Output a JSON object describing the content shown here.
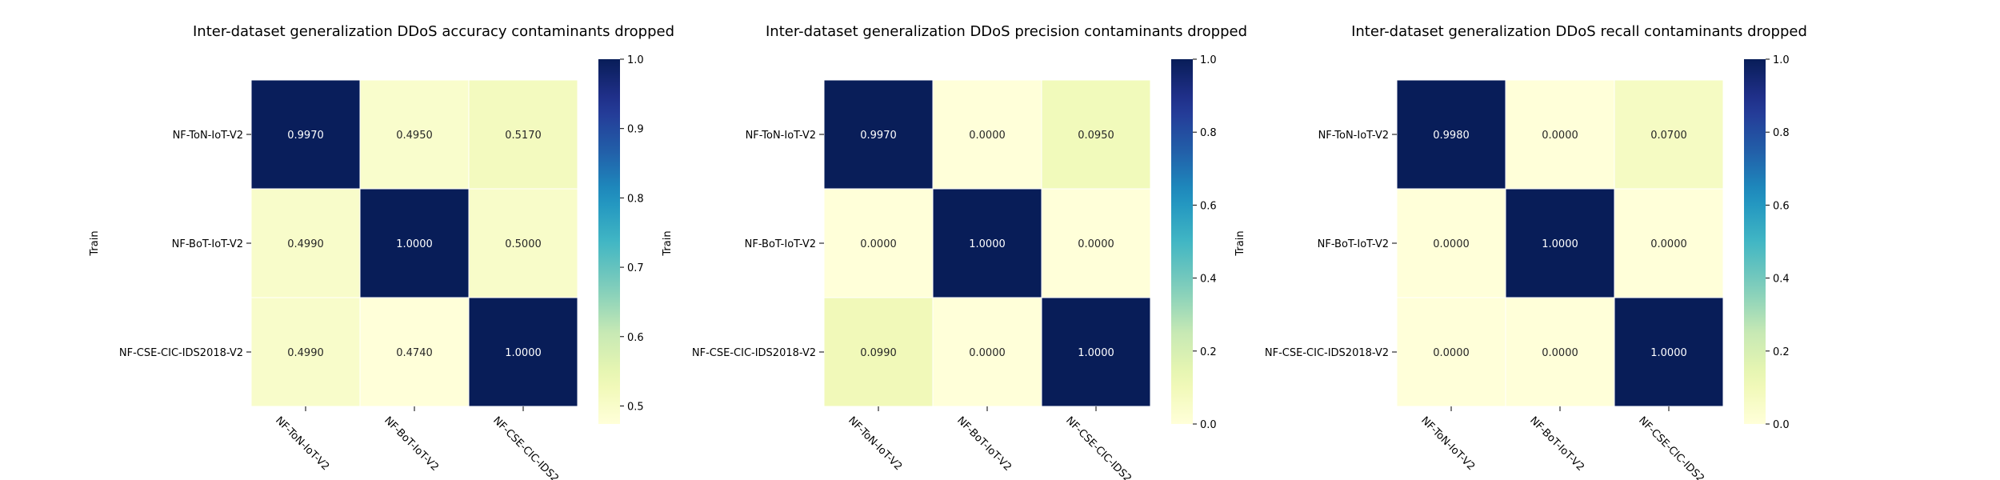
{
  "chart_data": [
    {
      "type": "heatmap",
      "title": "Inter-dataset generalization DDoS accuracy contaminants dropped",
      "ylabel": "Train",
      "xlabel": "",
      "rows": [
        "NF-ToN-IoT-V2",
        "NF-BoT-IoT-V2",
        "NF-CSE-CIC-IDS2018-V2"
      ],
      "columns": [
        "NF-ToN-IoT-V2",
        "NF-BoT-IoT-V2",
        "NF-CSE-CIC-IDS2"
      ],
      "values": [
        [
          0.997,
          0.495,
          0.517
        ],
        [
          0.499,
          1.0,
          0.5
        ],
        [
          0.499,
          0.474,
          1.0
        ]
      ],
      "labels": [
        [
          "0.9970",
          "0.4950",
          "0.5170"
        ],
        [
          "0.4990",
          "1.0000",
          "0.5000"
        ],
        [
          "0.4990",
          "0.4740",
          "1.0000"
        ]
      ],
      "colorbar": {
        "min": 0.474,
        "max": 1.0,
        "ticks": [
          0.5,
          0.6,
          0.7,
          0.8,
          0.9,
          1.0
        ],
        "tick_labels": [
          "0.5",
          "0.6",
          "0.7",
          "0.8",
          "0.9",
          "1.0"
        ]
      },
      "colormap": "YlGnBu"
    },
    {
      "type": "heatmap",
      "title": "Inter-dataset generalization DDoS precision contaminants dropped",
      "ylabel": "Train",
      "xlabel": "",
      "rows": [
        "NF-ToN-IoT-V2",
        "NF-BoT-IoT-V2",
        "NF-CSE-CIC-IDS2018-V2"
      ],
      "columns": [
        "NF-ToN-IoT-V2",
        "NF-BoT-IoT-V2",
        "NF-CSE-CIC-IDS2"
      ],
      "values": [
        [
          0.997,
          0.0,
          0.095
        ],
        [
          0.0,
          1.0,
          0.0
        ],
        [
          0.099,
          0.0,
          1.0
        ]
      ],
      "labels": [
        [
          "0.9970",
          "0.0000",
          "0.0950"
        ],
        [
          "0.0000",
          "1.0000",
          "0.0000"
        ],
        [
          "0.0990",
          "0.0000",
          "1.0000"
        ]
      ],
      "colorbar": {
        "min": 0.0,
        "max": 1.0,
        "ticks": [
          0.0,
          0.2,
          0.4,
          0.6,
          0.8,
          1.0
        ],
        "tick_labels": [
          "0.0",
          "0.2",
          "0.4",
          "0.6",
          "0.8",
          "1.0"
        ]
      },
      "colormap": "YlGnBu"
    },
    {
      "type": "heatmap",
      "title": "Inter-dataset generalization DDoS recall contaminants dropped",
      "ylabel": "Train",
      "xlabel": "",
      "rows": [
        "NF-ToN-IoT-V2",
        "NF-BoT-IoT-V2",
        "NF-CSE-CIC-IDS2018-V2"
      ],
      "columns": [
        "NF-ToN-IoT-V2",
        "NF-BoT-IoT-V2",
        "NF-CSE-CIC-IDS2"
      ],
      "values": [
        [
          0.998,
          0.0,
          0.07
        ],
        [
          0.0,
          1.0,
          0.0
        ],
        [
          0.0,
          0.0,
          1.0
        ]
      ],
      "labels": [
        [
          "0.9980",
          "0.0000",
          "0.0700"
        ],
        [
          "0.0000",
          "1.0000",
          "0.0000"
        ],
        [
          "0.0000",
          "0.0000",
          "1.0000"
        ]
      ],
      "colorbar": {
        "min": 0.0,
        "max": 1.0,
        "ticks": [
          0.0,
          0.2,
          0.4,
          0.6,
          0.8,
          1.0
        ],
        "tick_labels": [
          "0.0",
          "0.2",
          "0.4",
          "0.6",
          "0.8",
          "1.0"
        ]
      },
      "colormap": "YlGnBu"
    }
  ]
}
